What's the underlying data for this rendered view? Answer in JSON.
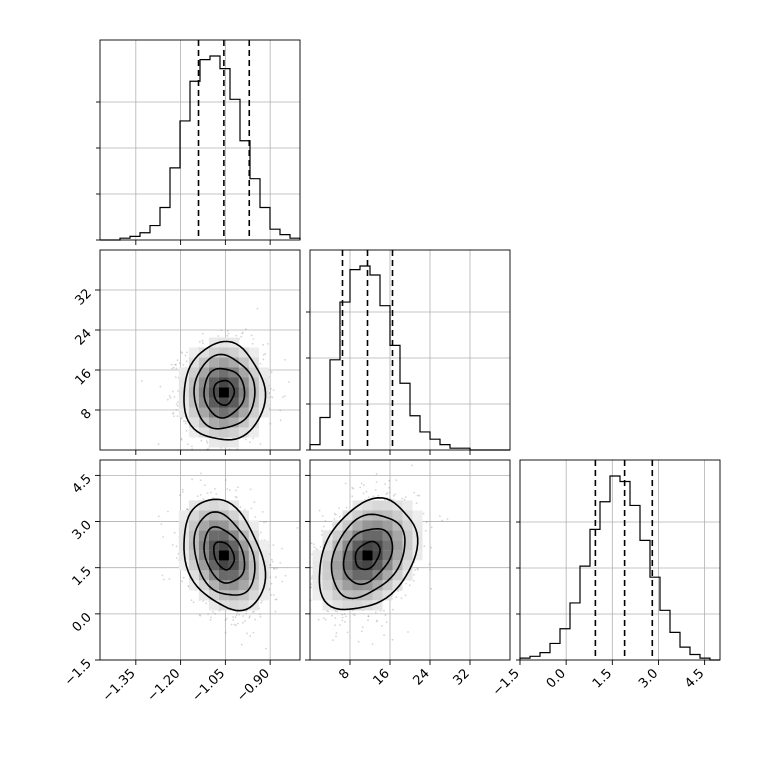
{
  "chart_data": {
    "type": "corner",
    "parameters": [
      "",
      "",
      ""
    ],
    "grid": true,
    "axes": {
      "p0": {
        "range": [
          -1.47,
          -0.8
        ],
        "ticks": [
          -1.35,
          -1.2,
          -1.05,
          -0.9
        ],
        "tick_labels": [
          "−1.35",
          "−1.20",
          "−1.05",
          "−0.90"
        ]
      },
      "p1": {
        "range": [
          0,
          40
        ],
        "ticks": [
          8,
          16,
          24,
          32
        ],
        "tick_labels": [
          "8",
          "16",
          "24",
          "32"
        ]
      },
      "p2": {
        "range": [
          -1.5,
          5.0
        ],
        "ticks": [
          -1.5,
          0.0,
          1.5,
          3.0,
          4.5
        ],
        "tick_labels": [
          "−1.5",
          "0.0",
          "1.5",
          "3.0",
          "4.5"
        ]
      }
    },
    "histograms": [
      {
        "param": "p0",
        "bin_range": [
          -1.47,
          -0.8
        ],
        "counts": [
          0,
          0,
          1,
          2,
          4,
          8,
          18,
          40,
          66,
          88,
          100,
          102,
          95,
          78,
          55,
          34,
          18,
          6,
          3,
          1
        ],
        "quantile_lines": [
          -1.14,
          -1.055,
          -0.97
        ]
      },
      {
        "param": "p1",
        "bin_range": [
          0,
          40
        ],
        "counts": [
          3,
          18,
          50,
          82,
          100,
          102,
          97,
          80,
          58,
          37,
          19,
          10,
          6,
          3,
          1,
          1,
          0,
          0,
          0,
          0
        ],
        "quantile_lines": [
          6.5,
          11.5,
          16.5
        ]
      },
      {
        "param": "p2",
        "bin_range": [
          -1.5,
          5.0
        ],
        "counts": [
          1,
          2,
          4,
          9,
          17,
          31,
          51,
          71,
          86,
          100,
          97,
          84,
          65,
          45,
          27,
          15,
          7,
          3,
          1,
          0
        ],
        "quantile_lines": [
          0.95,
          1.9,
          2.8
        ]
      }
    ],
    "joint": [
      {
        "x": "p0",
        "y": "p1",
        "center": [
          -1.055,
          11.5
        ],
        "sd": [
          0.068,
          4.9
        ],
        "rho": 0.0
      },
      {
        "x": "p0",
        "y": "p2",
        "center": [
          -1.055,
          1.9
        ],
        "sd": [
          0.068,
          0.9
        ],
        "rho": -0.3
      },
      {
        "x": "p1",
        "y": "p2",
        "center": [
          11.5,
          1.9
        ],
        "sd": [
          4.9,
          0.9
        ],
        "rho": 0.3
      }
    ],
    "contour_levels": [
      0.118,
      0.393,
      0.675,
      0.865
    ]
  }
}
